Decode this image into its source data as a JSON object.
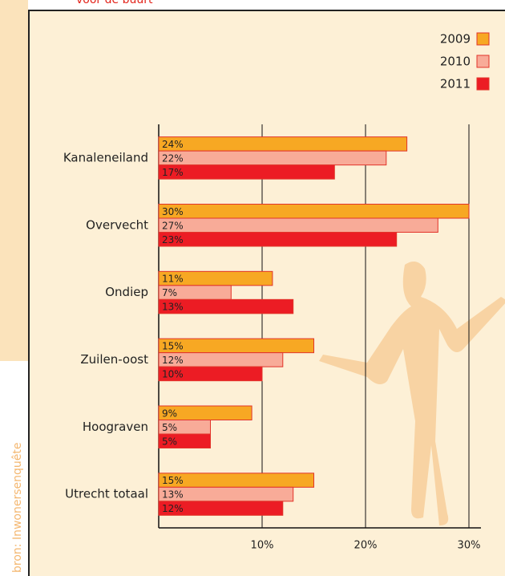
{
  "header_fragment": "voor de buurt",
  "source": "bron: Inwonersenquête",
  "chart_data": {
    "type": "bar",
    "orientation": "horizontal",
    "categories": [
      "Kanaleneiland",
      "Overvecht",
      "Ondiep",
      "Zuilen-oost",
      "Hoograven",
      "Utrecht totaal"
    ],
    "series": [
      {
        "name": "2009",
        "color": "#f7a823",
        "values": [
          24,
          30,
          11,
          15,
          9,
          15
        ],
        "value_labels": [
          "24%",
          "30%",
          "11%",
          "15%",
          "9%",
          "15%"
        ]
      },
      {
        "name": "2010",
        "color": "#f8ab98",
        "values": [
          22,
          27,
          7,
          12,
          5,
          13
        ],
        "value_labels": [
          "22%",
          "27%",
          "7%",
          "12%",
          "5%",
          "13%"
        ]
      },
      {
        "name": "2011",
        "color": "#ec1c24",
        "values": [
          17,
          23,
          13,
          10,
          5,
          12
        ],
        "value_labels": [
          "17%",
          "23%",
          "13%",
          "10%",
          "5%",
          "12%"
        ]
      }
    ],
    "xlim": [
      0,
      30
    ],
    "xticks": [
      {
        "value": 10,
        "label": "10%"
      },
      {
        "value": 20,
        "label": "20%"
      },
      {
        "value": 30,
        "label": "30%"
      }
    ],
    "grid": true,
    "legend": "top-right"
  }
}
